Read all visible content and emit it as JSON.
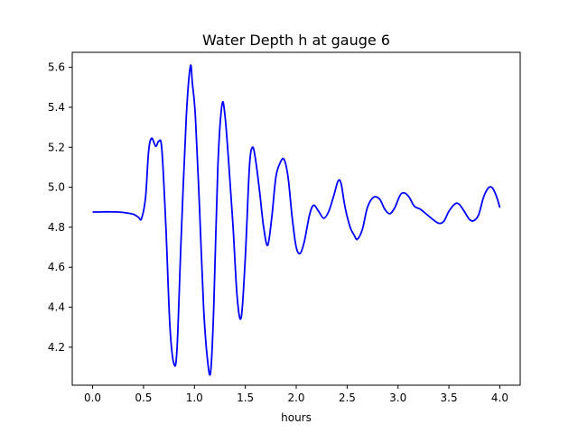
{
  "chart_data": {
    "type": "line",
    "title": "Water Depth h at gauge 6",
    "xlabel": "hours",
    "ylabel": "",
    "xlim": [
      -0.2,
      4.2
    ],
    "ylim": [
      4.01,
      5.675
    ],
    "xticks": [
      0.0,
      0.5,
      1.0,
      1.5,
      2.0,
      2.5,
      3.0,
      3.5,
      4.0
    ],
    "xtick_labels": [
      "0.0",
      "0.5",
      "1.0",
      "1.5",
      "2.0",
      "2.5",
      "3.0",
      "3.5",
      "4.0"
    ],
    "yticks": [
      4.2,
      4.4,
      4.6,
      4.8,
      5.0,
      5.2,
      5.4,
      5.6
    ],
    "ytick_labels": [
      "4.2",
      "4.4",
      "4.6",
      "4.8",
      "5.0",
      "5.2",
      "5.4",
      "5.6"
    ],
    "grid": false,
    "series": [
      {
        "color": "#0000ff",
        "points": [
          [
            0.0,
            4.876
          ],
          [
            0.1,
            4.877
          ],
          [
            0.2,
            4.877
          ],
          [
            0.3,
            4.874
          ],
          [
            0.4,
            4.865
          ],
          [
            0.45,
            4.85
          ],
          [
            0.48,
            4.843
          ],
          [
            0.52,
            4.95
          ],
          [
            0.55,
            5.18
          ],
          [
            0.58,
            5.245
          ],
          [
            0.62,
            5.205
          ],
          [
            0.65,
            5.23
          ],
          [
            0.68,
            5.19
          ],
          [
            0.72,
            4.8
          ],
          [
            0.76,
            4.3
          ],
          [
            0.8,
            4.115
          ],
          [
            0.83,
            4.2
          ],
          [
            0.87,
            4.75
          ],
          [
            0.92,
            5.35
          ],
          [
            0.96,
            5.605
          ],
          [
            0.98,
            5.52
          ],
          [
            1.01,
            5.35
          ],
          [
            1.05,
            4.9
          ],
          [
            1.09,
            4.4
          ],
          [
            1.13,
            4.13
          ],
          [
            1.16,
            4.08
          ],
          [
            1.19,
            4.4
          ],
          [
            1.23,
            5.1
          ],
          [
            1.27,
            5.41
          ],
          [
            1.3,
            5.36
          ],
          [
            1.34,
            5.1
          ],
          [
            1.38,
            4.8
          ],
          [
            1.42,
            4.45
          ],
          [
            1.46,
            4.35
          ],
          [
            1.5,
            4.65
          ],
          [
            1.54,
            5.1
          ],
          [
            1.57,
            5.2
          ],
          [
            1.6,
            5.14
          ],
          [
            1.64,
            4.98
          ],
          [
            1.68,
            4.8
          ],
          [
            1.72,
            4.71
          ],
          [
            1.76,
            4.85
          ],
          [
            1.8,
            5.05
          ],
          [
            1.84,
            5.12
          ],
          [
            1.88,
            5.14
          ],
          [
            1.92,
            5.05
          ],
          [
            1.96,
            4.85
          ],
          [
            2.0,
            4.7
          ],
          [
            2.04,
            4.67
          ],
          [
            2.08,
            4.73
          ],
          [
            2.13,
            4.86
          ],
          [
            2.17,
            4.91
          ],
          [
            2.22,
            4.88
          ],
          [
            2.27,
            4.845
          ],
          [
            2.32,
            4.88
          ],
          [
            2.37,
            4.96
          ],
          [
            2.41,
            5.03
          ],
          [
            2.44,
            5.02
          ],
          [
            2.48,
            4.9
          ],
          [
            2.53,
            4.8
          ],
          [
            2.57,
            4.76
          ],
          [
            2.6,
            4.74
          ],
          [
            2.65,
            4.79
          ],
          [
            2.7,
            4.9
          ],
          [
            2.76,
            4.95
          ],
          [
            2.82,
            4.94
          ],
          [
            2.87,
            4.89
          ],
          [
            2.92,
            4.868
          ],
          [
            2.97,
            4.9
          ],
          [
            3.02,
            4.96
          ],
          [
            3.06,
            4.972
          ],
          [
            3.11,
            4.95
          ],
          [
            3.16,
            4.905
          ],
          [
            3.22,
            4.89
          ],
          [
            3.28,
            4.865
          ],
          [
            3.34,
            4.84
          ],
          [
            3.4,
            4.82
          ],
          [
            3.45,
            4.83
          ],
          [
            3.5,
            4.88
          ],
          [
            3.56,
            4.917
          ],
          [
            3.6,
            4.915
          ],
          [
            3.65,
            4.88
          ],
          [
            3.7,
            4.84
          ],
          [
            3.74,
            4.832
          ],
          [
            3.79,
            4.86
          ],
          [
            3.84,
            4.95
          ],
          [
            3.89,
            4.998
          ],
          [
            3.93,
            4.995
          ],
          [
            3.97,
            4.95
          ],
          [
            4.0,
            4.898
          ]
        ]
      }
    ]
  }
}
